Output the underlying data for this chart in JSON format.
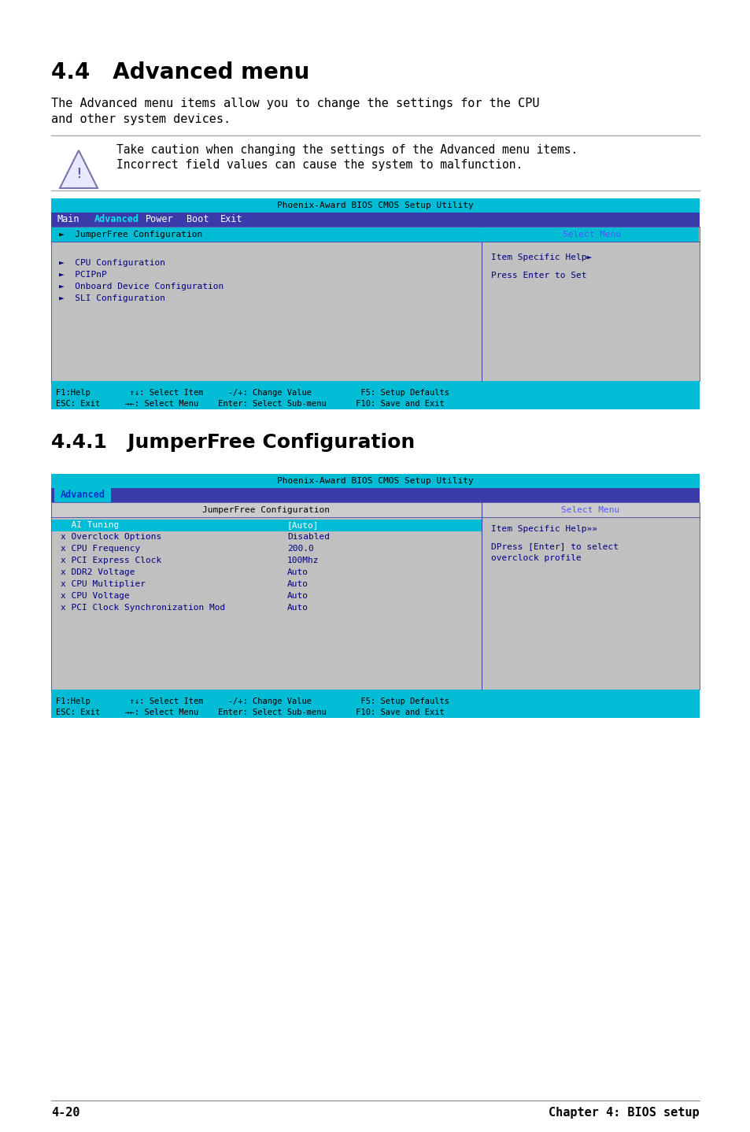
{
  "page_bg": "#ffffff",
  "title1": "4.4   Advanced menu",
  "body1_line1": "The Advanced menu items allow you to change the settings for the CPU",
  "body1_line2": "and other system devices.",
  "warning_text_line1": "Take caution when changing the settings of the Advanced menu items.",
  "warning_text_line2": "Incorrect field values can cause the system to malfunction.",
  "section2_title": "4.4.1   JumperFree Configuration",
  "bios_title_color": "#00bcd4",
  "bios_menu_bar_color": "#3a3aaa",
  "bios_bg_color": "#c0c0c0",
  "bios_selected_color": "#00bcd4",
  "bios_text_dark": "#000080",
  "bios_text_blue": "#5555ff",
  "footer_bg": "#00bcd4",
  "screen1_title": "Phoenix-Award BIOS CMOS Setup Utility",
  "screen1_menu": [
    "Main",
    "Advanced",
    "Power",
    "Boot",
    "Exit"
  ],
  "screen1_selected_menu": "Advanced",
  "screen1_footer1": "F1:Help        ↑↓: Select Item     -/+: Change Value          F5: Setup Defaults",
  "screen1_footer2": "ESC: Exit     →←: Select Menu    Enter: Select Sub-menu      F10: Save and Exit",
  "screen2_title": "Phoenix-Award BIOS CMOS Setup Utility",
  "screen2_footer1": "F1:Help        ↑↓: Select Item     -/+: Change Value          F5: Setup Defaults",
  "screen2_footer2": "ESC: Exit     →←: Select Menu    Enter: Select Sub-menu      F10: Save and Exit",
  "footer_page": "4-20",
  "footer_chapter": "Chapter 4: BIOS setup",
  "screen2_items": [
    [
      "  AI Tuning",
      "[Auto]",
      true
    ],
    [
      "x Overclock Options",
      "Disabled",
      false
    ],
    [
      "x CPU Frequency",
      "200.0",
      false
    ],
    [
      "x PCI Express Clock",
      "100Mhz",
      false
    ],
    [
      "x DDR2 Voltage",
      "Auto",
      false
    ],
    [
      "x CPU Multiplier",
      "Auto",
      false
    ],
    [
      "x CPU Voltage",
      "Auto",
      false
    ],
    [
      "x PCI Clock Synchronization Mod",
      "Auto",
      false
    ]
  ]
}
